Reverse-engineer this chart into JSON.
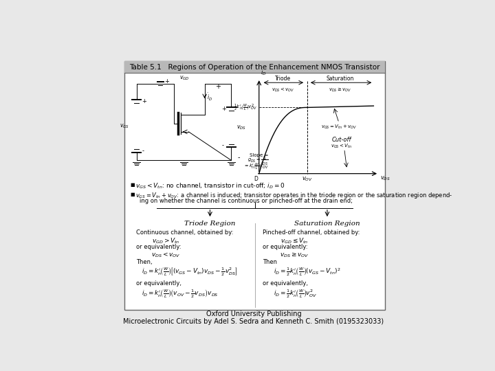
{
  "background_color": "#e8e8e8",
  "page_bg": "#ffffff",
  "title": "Table 5.1   Regions of Operation of the Enhancement NMOS Transistor",
  "title_bg": "#c0c0c0",
  "footer_line1": "Oxford University Publishing",
  "footer_line2": "Microelectronic Circuits by Adel S. Sedra and Kenneth C. Smith (0195323033)"
}
